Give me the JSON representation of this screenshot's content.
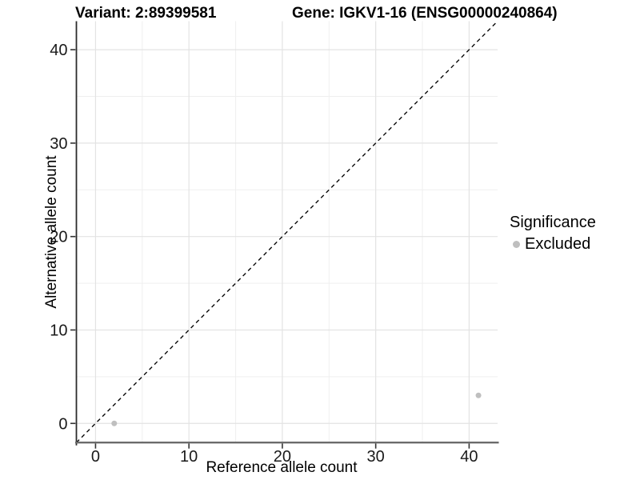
{
  "header": {
    "variant_title": "Variant: 2:89399581",
    "gene_title": "Gene: IGKV1-16 (ENSG00000240864)"
  },
  "colors": {
    "point_fill": "#bfbfbf",
    "grid_major": "#e3e3e3",
    "grid_minor": "#efefef",
    "axis_line_y": "#2b2b2b",
    "axis_line_x": "#6b6b6b",
    "tick_mark": "#333333",
    "dashed_line": "#0a0a0a",
    "tick_label": "#1a1a1a"
  },
  "chart_data": {
    "type": "scatter",
    "xlabel": "Reference allele count",
    "ylabel": "Alternative allele count",
    "xlim": [
      -2.05,
      43.05
    ],
    "ylim": [
      -2.05,
      43.05
    ],
    "x_major_ticks": [
      0,
      10,
      20,
      30,
      40
    ],
    "y_major_ticks": [
      0,
      10,
      20,
      30,
      40
    ],
    "x_minor_ticks": [
      5,
      15,
      25,
      35
    ],
    "y_minor_ticks": [
      5,
      15,
      25,
      35
    ],
    "grid": true,
    "points": [
      {
        "x": 2,
        "y": 0,
        "significance": "Excluded"
      },
      {
        "x": 41,
        "y": 3,
        "significance": "Excluded"
      }
    ],
    "reference_line": {
      "type": "identity",
      "slope": 1,
      "intercept": 0,
      "linetype": "dashed",
      "color": "#0a0a0a"
    },
    "legend": {
      "title": "Significance",
      "position": "right",
      "entries": [
        {
          "label": "Excluded",
          "color": "#bfbfbf"
        }
      ]
    }
  }
}
